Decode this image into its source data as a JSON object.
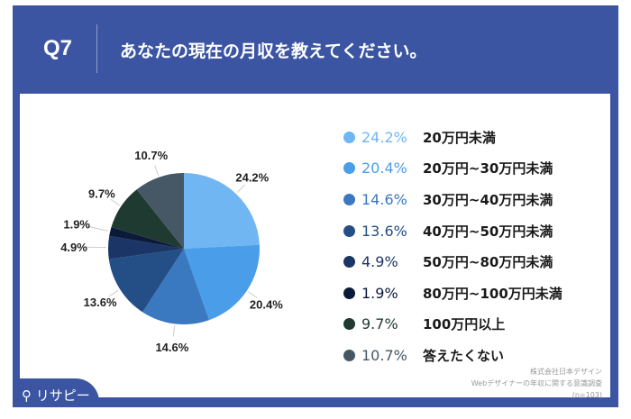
{
  "header": {
    "question_no": "Q7",
    "question": "あなたの現在の月収を教えてください。"
  },
  "brand": {
    "logo_text": "リサピー",
    "logo_icon": "pin-icon"
  },
  "source": {
    "line1": "株式会社日本デザイン",
    "line2": "Webデザイナーの年収に関する意識調査",
    "line3": "(n=103)"
  },
  "colors": {
    "header": "#3b55a3"
  },
  "chart_data": {
    "type": "pie",
    "unit": "%",
    "legend_position": "right",
    "slices": [
      {
        "label": "20万円未満",
        "value": 24.2,
        "display": "24.2%",
        "color": "#6fb6f2"
      },
      {
        "label": "20万円~30万円未満",
        "value": 20.4,
        "display": "20.4%",
        "color": "#4a9de8"
      },
      {
        "label": "30万円~40万円未満",
        "value": 14.6,
        "display": "14.6%",
        "color": "#3a78c0"
      },
      {
        "label": "40万円~50万円未満",
        "value": 13.6,
        "display": "13.6%",
        "color": "#244f86"
      },
      {
        "label": "50万円~80万円未満",
        "value": 4.9,
        "display": "4.9%",
        "color": "#1a3566"
      },
      {
        "label": "80万円~100万円未満",
        "value": 1.9,
        "display": "1.9%",
        "color": "#0c1a3a"
      },
      {
        "label": "100万円以上",
        "value": 9.7,
        "display": "9.7%",
        "color": "#1f3a30"
      },
      {
        "label": "答えたくない",
        "value": 10.7,
        "display": "10.7%",
        "color": "#465766"
      }
    ]
  }
}
